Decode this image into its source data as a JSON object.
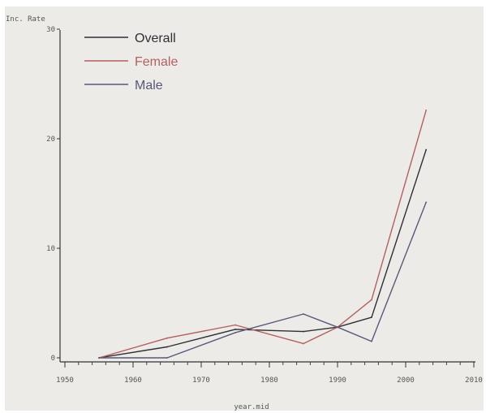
{
  "chart_data": {
    "type": "line",
    "title": "",
    "ylabel": "Inc. Rate",
    "xlabel": "year.mid",
    "xlim": [
      1950,
      2010
    ],
    "ylim": [
      0,
      30
    ],
    "x_ticks": [
      1950,
      1960,
      1970,
      1980,
      1990,
      2000,
      2010
    ],
    "y_ticks": [
      0,
      10,
      20,
      30
    ],
    "legend_position": "top-left",
    "grid": false,
    "series": [
      {
        "name": "Overall",
        "color": "#2f2f35",
        "x": [
          1955,
          1965,
          1975,
          1985,
          1990,
          1995,
          2003
        ],
        "y": [
          0,
          1,
          2.6,
          2.4,
          2.8,
          3.7,
          19
        ]
      },
      {
        "name": "Female",
        "color": "#b46060",
        "x": [
          1955,
          1965,
          1975,
          1985,
          1990,
          1995,
          2003
        ],
        "y": [
          0,
          1.8,
          3.0,
          1.3,
          2.8,
          5.3,
          22.6
        ]
      },
      {
        "name": "Male",
        "color": "#585878",
        "x": [
          1955,
          1965,
          1975,
          1985,
          1990,
          1995,
          2003
        ],
        "y": [
          0,
          0,
          2.3,
          4.0,
          2.8,
          1.5,
          14.2
        ]
      }
    ]
  }
}
